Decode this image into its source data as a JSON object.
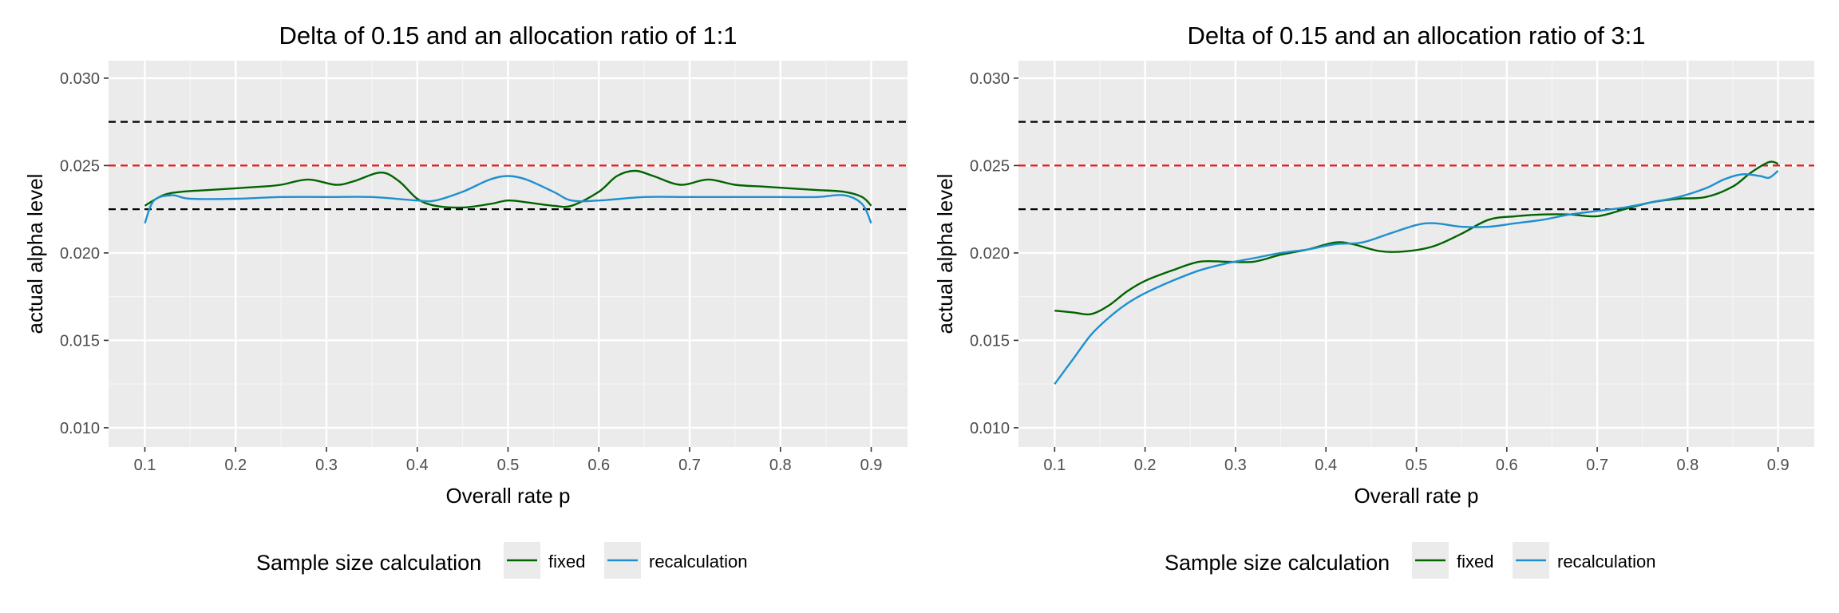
{
  "colors": {
    "panel_background": "#ebebeb",
    "grid_major": "#ffffff",
    "grid_minor": "#f5f5f5",
    "reference_red": "#e31a1c",
    "reference_black": "#000000",
    "fixed": "#006400",
    "recalculation": "#1e90d0"
  },
  "legend": {
    "title": "Sample size calculation",
    "items": [
      {
        "label": "fixed",
        "color": "#006400"
      },
      {
        "label": "recalculation",
        "color": "#1e90d0"
      }
    ],
    "placement": "bottom"
  },
  "chart_data": [
    {
      "type": "line",
      "title": "Delta of 0.15 and an allocation ratio of 1:1",
      "xlabel": "Overall rate p",
      "ylabel": "actual alpha level",
      "xlim": [
        0.06,
        0.94
      ],
      "ylim": [
        0.0089,
        0.031
      ],
      "xticks": [
        0.1,
        0.2,
        0.3,
        0.4,
        0.5,
        0.6,
        0.7,
        0.8,
        0.9
      ],
      "xtick_labels": [
        "0.1",
        "0.2",
        "0.3",
        "0.4",
        "0.5",
        "0.6",
        "0.7",
        "0.8",
        "0.9"
      ],
      "yticks": [
        0.01,
        0.015,
        0.02,
        0.025,
        0.03
      ],
      "ytick_labels": [
        "0.010",
        "0.015",
        "0.020",
        "0.025",
        "0.030"
      ],
      "grid": true,
      "reference_lines": [
        {
          "y": 0.0275,
          "color": "black",
          "style": "dashed"
        },
        {
          "y": 0.025,
          "color": "red",
          "style": "dashed"
        },
        {
          "y": 0.0225,
          "color": "black",
          "style": "dashed"
        }
      ],
      "series": [
        {
          "name": "fixed",
          "color": "#006400",
          "x": [
            0.1,
            0.12,
            0.14,
            0.17,
            0.2,
            0.23,
            0.25,
            0.28,
            0.31,
            0.33,
            0.36,
            0.38,
            0.4,
            0.42,
            0.45,
            0.48,
            0.5,
            0.52,
            0.55,
            0.57,
            0.6,
            0.62,
            0.64,
            0.66,
            0.69,
            0.72,
            0.75,
            0.78,
            0.81,
            0.84,
            0.87,
            0.89,
            0.9
          ],
          "y": [
            0.0227,
            0.0233,
            0.0235,
            0.0236,
            0.0237,
            0.0238,
            0.0239,
            0.0242,
            0.0239,
            0.0241,
            0.0246,
            0.0241,
            0.0231,
            0.0227,
            0.0226,
            0.0228,
            0.023,
            0.0229,
            0.0227,
            0.0227,
            0.0235,
            0.0244,
            0.0247,
            0.0244,
            0.0239,
            0.0242,
            0.0239,
            0.0238,
            0.0237,
            0.0236,
            0.0235,
            0.0232,
            0.0227
          ]
        },
        {
          "name": "recalculation",
          "color": "#1e90d0",
          "x": [
            0.1,
            0.11,
            0.13,
            0.15,
            0.2,
            0.25,
            0.3,
            0.35,
            0.4,
            0.42,
            0.45,
            0.48,
            0.5,
            0.52,
            0.55,
            0.57,
            0.6,
            0.65,
            0.7,
            0.75,
            0.8,
            0.84,
            0.87,
            0.89,
            0.9
          ],
          "y": [
            0.0217,
            0.023,
            0.0233,
            0.0231,
            0.0231,
            0.0232,
            0.0232,
            0.0232,
            0.023,
            0.023,
            0.0235,
            0.0242,
            0.0244,
            0.0242,
            0.0235,
            0.023,
            0.023,
            0.0232,
            0.0232,
            0.0232,
            0.0232,
            0.0232,
            0.0233,
            0.0228,
            0.0217
          ]
        }
      ]
    },
    {
      "type": "line",
      "title": "Delta of 0.15 and an allocation ratio of 3:1",
      "xlabel": "Overall rate p",
      "ylabel": "actual alpha level",
      "xlim": [
        0.06,
        0.94
      ],
      "ylim": [
        0.0089,
        0.031
      ],
      "xticks": [
        0.1,
        0.2,
        0.3,
        0.4,
        0.5,
        0.6,
        0.7,
        0.8,
        0.9
      ],
      "xtick_labels": [
        "0.1",
        "0.2",
        "0.3",
        "0.4",
        "0.5",
        "0.6",
        "0.7",
        "0.8",
        "0.9"
      ],
      "yticks": [
        0.01,
        0.015,
        0.02,
        0.025,
        0.03
      ],
      "ytick_labels": [
        "0.010",
        "0.015",
        "0.020",
        "0.025",
        "0.030"
      ],
      "grid": true,
      "reference_lines": [
        {
          "y": 0.0275,
          "color": "black",
          "style": "dashed"
        },
        {
          "y": 0.025,
          "color": "red",
          "style": "dashed"
        },
        {
          "y": 0.0225,
          "color": "black",
          "style": "dashed"
        }
      ],
      "series": [
        {
          "name": "fixed",
          "color": "#006400",
          "x": [
            0.1,
            0.12,
            0.14,
            0.16,
            0.18,
            0.2,
            0.23,
            0.26,
            0.29,
            0.32,
            0.35,
            0.38,
            0.41,
            0.43,
            0.46,
            0.49,
            0.52,
            0.55,
            0.58,
            0.61,
            0.64,
            0.67,
            0.7,
            0.73,
            0.76,
            0.79,
            0.82,
            0.85,
            0.87,
            0.89,
            0.9
          ],
          "y": [
            0.0167,
            0.0166,
            0.0165,
            0.017,
            0.0178,
            0.0184,
            0.019,
            0.0195,
            0.0195,
            0.0195,
            0.0199,
            0.0202,
            0.0206,
            0.0205,
            0.0201,
            0.0201,
            0.0204,
            0.0211,
            0.0219,
            0.0221,
            0.0222,
            0.0222,
            0.0221,
            0.0225,
            0.0229,
            0.0231,
            0.0232,
            0.0238,
            0.0246,
            0.0252,
            0.0251
          ]
        },
        {
          "name": "recalculation",
          "color": "#1e90d0",
          "x": [
            0.1,
            0.12,
            0.14,
            0.16,
            0.18,
            0.2,
            0.23,
            0.26,
            0.29,
            0.32,
            0.35,
            0.38,
            0.41,
            0.44,
            0.47,
            0.5,
            0.52,
            0.55,
            0.58,
            0.61,
            0.64,
            0.67,
            0.7,
            0.73,
            0.76,
            0.79,
            0.82,
            0.84,
            0.86,
            0.88,
            0.89,
            0.9
          ],
          "y": [
            0.0125,
            0.0139,
            0.0153,
            0.0163,
            0.0171,
            0.0177,
            0.0184,
            0.019,
            0.0194,
            0.0197,
            0.02,
            0.0202,
            0.0205,
            0.0206,
            0.0211,
            0.0216,
            0.0217,
            0.0215,
            0.0215,
            0.0217,
            0.0219,
            0.0222,
            0.0224,
            0.0226,
            0.0229,
            0.0232,
            0.0237,
            0.0242,
            0.0245,
            0.0244,
            0.0243,
            0.0247
          ]
        }
      ]
    }
  ]
}
